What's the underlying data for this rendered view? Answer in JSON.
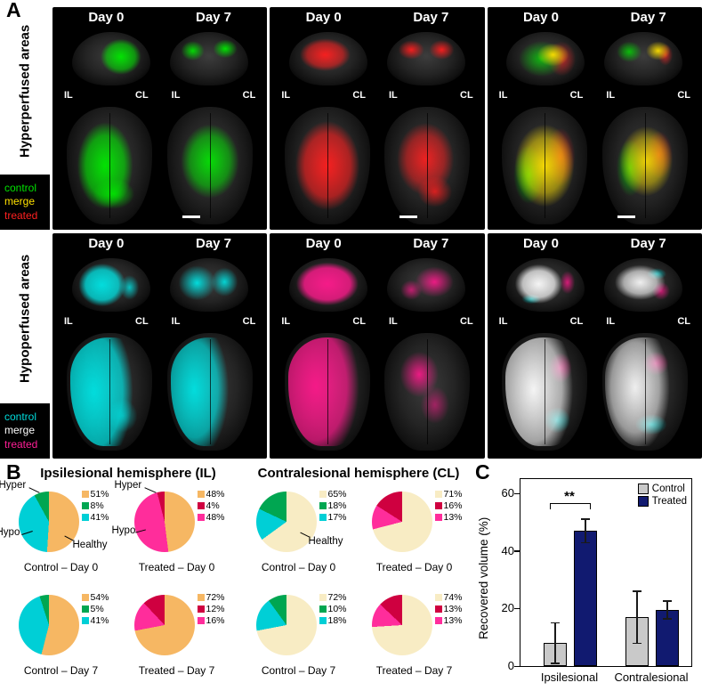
{
  "figure": {
    "panelA_label": "A",
    "panelB_label": "B",
    "panelC_label": "C"
  },
  "labels": {
    "day0": "Day 0",
    "day7": "Day 7",
    "il": "IL",
    "cl": "CL"
  },
  "colors": {
    "green": "#00e400",
    "red": "#ff2020",
    "yellow": "#ffe100",
    "cyan": "#00dcdc",
    "magenta": "#ff1e96",
    "white": "#ffffff",
    "healthy_il": "#f6b763",
    "healthy_cl": "#f8ecc4",
    "hyper_control": "#00a651",
    "hypo_control": "#00cfd6",
    "hyper_treated": "#cf0040",
    "hypo_treated": "#ff2d9b",
    "bar_control": "#c9c9c9",
    "bar_treated": "#111a70"
  },
  "panelA": {
    "blocks": [
      {
        "side_label": "Hyperperfused areas",
        "legend": [
          {
            "label": "control",
            "color": "green"
          },
          {
            "label": "merge",
            "color": "yellow"
          },
          {
            "label": "treated",
            "color": "red"
          }
        ]
      },
      {
        "side_label": "Hypoperfused areas",
        "legend": [
          {
            "label": "control",
            "color": "cyan"
          },
          {
            "label": "merge",
            "color": "white"
          },
          {
            "label": "treated",
            "color": "magenta"
          }
        ]
      }
    ]
  },
  "panelB": {
    "annotations": {
      "hyper": "Hyper",
      "hypo": "Hypo",
      "healthy": "Healthy"
    },
    "sections": [
      {
        "title": "Ipsilesional hemisphere (IL)",
        "pies": [
          {
            "caption": "Control – Day 0",
            "slices": [
              {
                "name": "healthy",
                "color": "healthy_il",
                "pct": 51
              },
              {
                "name": "hypo",
                "color": "hypo_control",
                "pct": 41
              },
              {
                "name": "hyper",
                "color": "hyper_control",
                "pct": 8
              }
            ],
            "legend": [
              {
                "pct": "51%",
                "color": "healthy_il"
              },
              {
                "pct": "8%",
                "color": "hyper_control"
              },
              {
                "pct": "41%",
                "color": "hypo_control"
              }
            ]
          },
          {
            "caption": "Treated – Day 0",
            "slices": [
              {
                "name": "healthy",
                "color": "healthy_il",
                "pct": 48
              },
              {
                "name": "hypo",
                "color": "hypo_treated",
                "pct": 48
              },
              {
                "name": "hyper",
                "color": "hyper_treated",
                "pct": 4
              }
            ],
            "legend": [
              {
                "pct": "48%",
                "color": "healthy_il"
              },
              {
                "pct": "4%",
                "color": "hyper_treated"
              },
              {
                "pct": "48%",
                "color": "hypo_treated"
              }
            ]
          },
          {
            "caption": "Control – Day 7",
            "slices": [
              {
                "name": "healthy",
                "color": "healthy_il",
                "pct": 54
              },
              {
                "name": "hypo",
                "color": "hypo_control",
                "pct": 41
              },
              {
                "name": "hyper",
                "color": "hyper_control",
                "pct": 5
              }
            ],
            "legend": [
              {
                "pct": "54%",
                "color": "healthy_il"
              },
              {
                "pct": "5%",
                "color": "hyper_control"
              },
              {
                "pct": "41%",
                "color": "hypo_control"
              }
            ]
          },
          {
            "caption": "Treated – Day 7",
            "slices": [
              {
                "name": "healthy",
                "color": "healthy_il",
                "pct": 72
              },
              {
                "name": "hypo",
                "color": "hypo_treated",
                "pct": 16
              },
              {
                "name": "hyper",
                "color": "hyper_treated",
                "pct": 12
              }
            ],
            "legend": [
              {
                "pct": "72%",
                "color": "healthy_il"
              },
              {
                "pct": "12%",
                "color": "hyper_treated"
              },
              {
                "pct": "16%",
                "color": "hypo_treated"
              }
            ]
          }
        ]
      },
      {
        "title": "Contralesional hemisphere (CL)",
        "pies": [
          {
            "caption": "Control – Day 0",
            "slices": [
              {
                "name": "healthy",
                "color": "healthy_cl",
                "pct": 65
              },
              {
                "name": "hypo",
                "color": "hypo_control",
                "pct": 17
              },
              {
                "name": "hyper",
                "color": "hyper_control",
                "pct": 18
              }
            ],
            "legend": [
              {
                "pct": "65%",
                "color": "healthy_cl"
              },
              {
                "pct": "18%",
                "color": "hyper_control"
              },
              {
                "pct": "17%",
                "color": "hypo_control"
              }
            ]
          },
          {
            "caption": "Treated – Day 0",
            "slices": [
              {
                "name": "healthy",
                "color": "healthy_cl",
                "pct": 71
              },
              {
                "name": "hypo",
                "color": "hypo_treated",
                "pct": 13
              },
              {
                "name": "hyper",
                "color": "hyper_treated",
                "pct": 16
              }
            ],
            "legend": [
              {
                "pct": "71%",
                "color": "healthy_cl"
              },
              {
                "pct": "16%",
                "color": "hyper_treated"
              },
              {
                "pct": "13%",
                "color": "hypo_treated"
              }
            ]
          },
          {
            "caption": "Control – Day 7",
            "slices": [
              {
                "name": "healthy",
                "color": "healthy_cl",
                "pct": 72
              },
              {
                "name": "hypo",
                "color": "hypo_control",
                "pct": 18
              },
              {
                "name": "hyper",
                "color": "hyper_control",
                "pct": 10
              }
            ],
            "legend": [
              {
                "pct": "72%",
                "color": "healthy_cl"
              },
              {
                "pct": "10%",
                "color": "hyper_control"
              },
              {
                "pct": "18%",
                "color": "hypo_control"
              }
            ]
          },
          {
            "caption": "Treated – Day 7",
            "slices": [
              {
                "name": "healthy",
                "color": "healthy_cl",
                "pct": 74
              },
              {
                "name": "hypo",
                "color": "hypo_treated",
                "pct": 13
              },
              {
                "name": "hyper",
                "color": "hyper_treated",
                "pct": 13
              }
            ],
            "legend": [
              {
                "pct": "74%",
                "color": "healthy_cl"
              },
              {
                "pct": "13%",
                "color": "hyper_treated"
              },
              {
                "pct": "13%",
                "color": "hypo_treated"
              }
            ]
          }
        ]
      }
    ]
  },
  "panelC": {
    "ylabel": "Recovered volume (%)",
    "ymax": 65,
    "ytick_labels": [
      "0",
      "20",
      "40",
      "60"
    ],
    "legend": [
      {
        "label": "Control",
        "color": "bar_control"
      },
      {
        "label": "Treated",
        "color": "bar_treated"
      }
    ],
    "groups": [
      {
        "label": "Ipsilesional",
        "sig": "**",
        "bars": [
          {
            "series": "Control",
            "color": "bar_control",
            "value": 8,
            "err": 7
          },
          {
            "series": "Treated",
            "color": "bar_treated",
            "value": 47,
            "err": 4
          }
        ]
      },
      {
        "label": "Contralesional",
        "bars": [
          {
            "series": "Control",
            "color": "bar_control",
            "value": 17,
            "err": 9
          },
          {
            "series": "Treated",
            "color": "bar_treated",
            "value": 19.5,
            "err": 3
          }
        ]
      }
    ]
  },
  "chart_data": [
    {
      "type": "pie",
      "title": "Ipsilesional Control – Day 0",
      "labels": [
        "Healthy",
        "Hyperperfused",
        "Hypoperfused"
      ],
      "values": [
        51,
        8,
        41
      ]
    },
    {
      "type": "pie",
      "title": "Ipsilesional Treated – Day 0",
      "labels": [
        "Healthy",
        "Hyperperfused",
        "Hypoperfused"
      ],
      "values": [
        48,
        4,
        48
      ]
    },
    {
      "type": "pie",
      "title": "Ipsilesional Control – Day 7",
      "labels": [
        "Healthy",
        "Hyperperfused",
        "Hypoperfused"
      ],
      "values": [
        54,
        5,
        41
      ]
    },
    {
      "type": "pie",
      "title": "Ipsilesional Treated – Day 7",
      "labels": [
        "Healthy",
        "Hyperperfused",
        "Hypoperfused"
      ],
      "values": [
        72,
        12,
        16
      ]
    },
    {
      "type": "pie",
      "title": "Contralesional Control – Day 0",
      "labels": [
        "Healthy",
        "Hyperperfused",
        "Hypoperfused"
      ],
      "values": [
        65,
        18,
        17
      ]
    },
    {
      "type": "pie",
      "title": "Contralesional Treated – Day 0",
      "labels": [
        "Healthy",
        "Hyperperfused",
        "Hypoperfused"
      ],
      "values": [
        71,
        16,
        13
      ]
    },
    {
      "type": "pie",
      "title": "Contralesional Control – Day 7",
      "labels": [
        "Healthy",
        "Hyperperfused",
        "Hypoperfused"
      ],
      "values": [
        72,
        10,
        18
      ]
    },
    {
      "type": "pie",
      "title": "Contralesional Treated – Day 7",
      "labels": [
        "Healthy",
        "Hyperperfused",
        "Hypoperfused"
      ],
      "values": [
        74,
        13,
        13
      ]
    },
    {
      "type": "bar",
      "title": "Recovered volume",
      "categories": [
        "Ipsilesional",
        "Contralesional"
      ],
      "series": [
        {
          "name": "Control",
          "values": [
            8,
            17
          ],
          "errors": [
            7,
            9
          ]
        },
        {
          "name": "Treated",
          "values": [
            47,
            19.5
          ],
          "errors": [
            4,
            3
          ]
        }
      ],
      "ylabel": "Recovered volume (%)",
      "ylim": [
        0,
        60
      ],
      "legend_position": "top-right",
      "significance": [
        {
          "group": "Ipsilesional",
          "label": "**"
        }
      ]
    }
  ]
}
